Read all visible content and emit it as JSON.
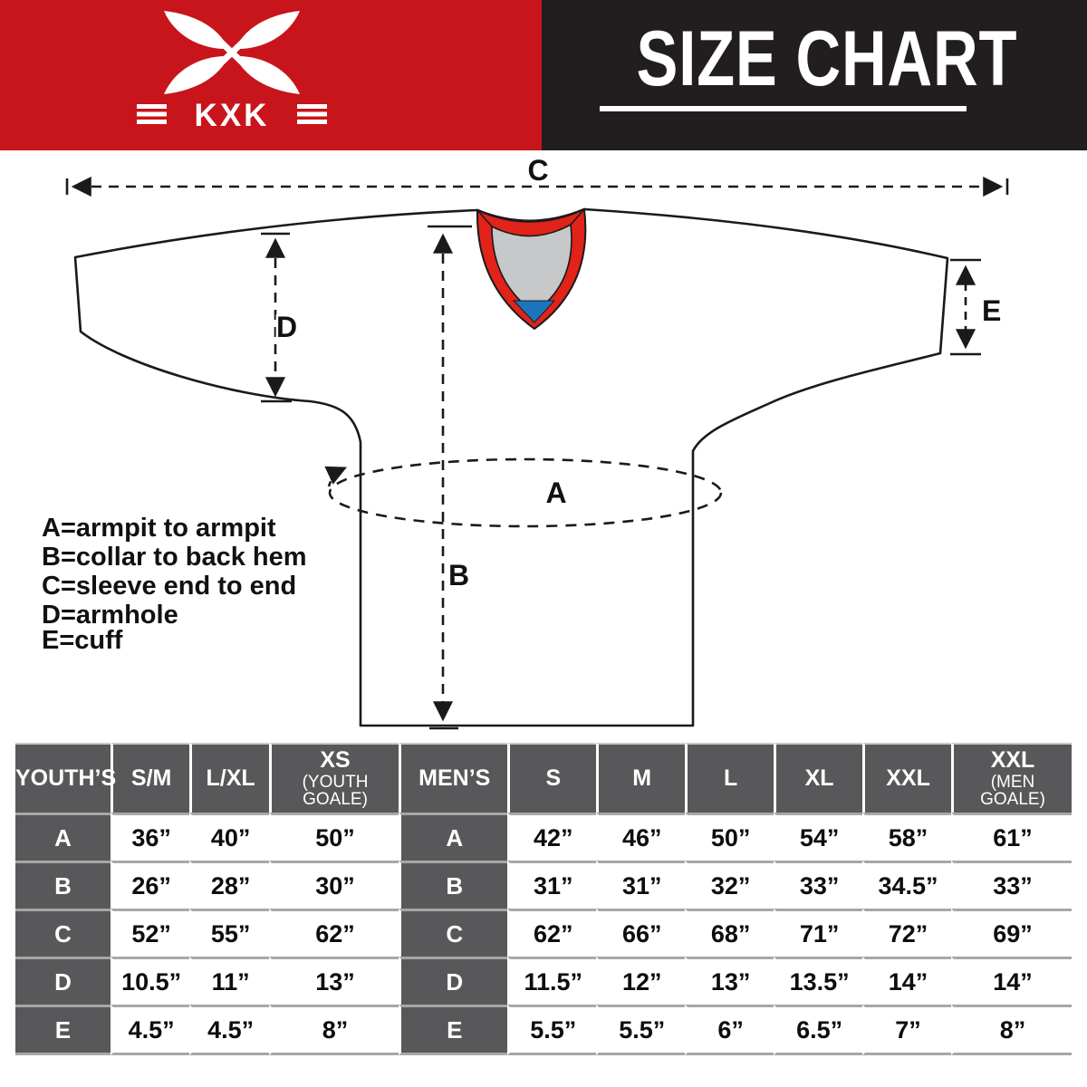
{
  "brand": {
    "logo_text": "KXK"
  },
  "header": {
    "title": "SIZE CHART"
  },
  "colors": {
    "banner_red": "#C8141B",
    "banner_black": "#221E1F",
    "table_header_gray": "#58585A",
    "row_divider_gray": "#A7A7A7",
    "collar_red": "#E2231A",
    "collar_gray": "#C7C8CA",
    "collar_blue": "#1B75BC"
  },
  "diagram": {
    "labels": {
      "A": "A",
      "B": "B",
      "C": "C",
      "D": "D",
      "E": "E"
    },
    "legend": [
      "A=armpit to armpit",
      "B=collar to back hem",
      "C=sleeve end to end",
      "D=armhole",
      "E=cuff"
    ]
  },
  "table": {
    "columns": [
      {
        "id": "youth-label",
        "title": "YOUTH’S",
        "sub": [],
        "width": 9.0
      },
      {
        "id": "youth-sm",
        "title": "S/M",
        "sub": [],
        "width": 7.5
      },
      {
        "id": "youth-lxl",
        "title": "L/XL",
        "sub": [],
        "width": 7.5
      },
      {
        "id": "youth-xs",
        "title": "XS",
        "sub": [
          "(YOUTH",
          "GOALE)"
        ],
        "width": 12.3
      },
      {
        "id": "men-label",
        "title": "MEN’S",
        "sub": [],
        "width": 10.3
      },
      {
        "id": "men-s",
        "title": "S",
        "sub": [],
        "width": 8.4
      },
      {
        "id": "men-m",
        "title": "M",
        "sub": [],
        "width": 8.4
      },
      {
        "id": "men-l",
        "title": "L",
        "sub": [],
        "width": 8.4
      },
      {
        "id": "men-xl",
        "title": "XL",
        "sub": [],
        "width": 8.4
      },
      {
        "id": "men-xxl",
        "title": "XXL",
        "sub": [],
        "width": 8.4
      },
      {
        "id": "men-xxl-goale",
        "title": "XXL",
        "sub": [
          "(MEN",
          "GOALE)"
        ],
        "width": 11.4
      }
    ],
    "rows": [
      {
        "label": "A",
        "youth": [
          "36”",
          "40”",
          "50”"
        ],
        "men": [
          "42”",
          "46”",
          "50”",
          "54”",
          "58”",
          "61”"
        ]
      },
      {
        "label": "B",
        "youth": [
          "26”",
          "28”",
          "30”"
        ],
        "men": [
          "31”",
          "31”",
          "32”",
          "33”",
          "34.5”",
          "33”"
        ]
      },
      {
        "label": "C",
        "youth": [
          "52”",
          "55”",
          "62”"
        ],
        "men": [
          "62”",
          "66”",
          "68”",
          "71”",
          "72”",
          "69”"
        ]
      },
      {
        "label": "D",
        "youth": [
          "10.5”",
          "11”",
          "13”"
        ],
        "men": [
          "11.5”",
          "12”",
          "13”",
          "13.5”",
          "14”",
          "14”"
        ]
      },
      {
        "label": "E",
        "youth": [
          "4.5”",
          "4.5”",
          "8”"
        ],
        "men": [
          "5.5”",
          "5.5”",
          "6”",
          "6.5”",
          "7”",
          "8”"
        ]
      }
    ]
  }
}
